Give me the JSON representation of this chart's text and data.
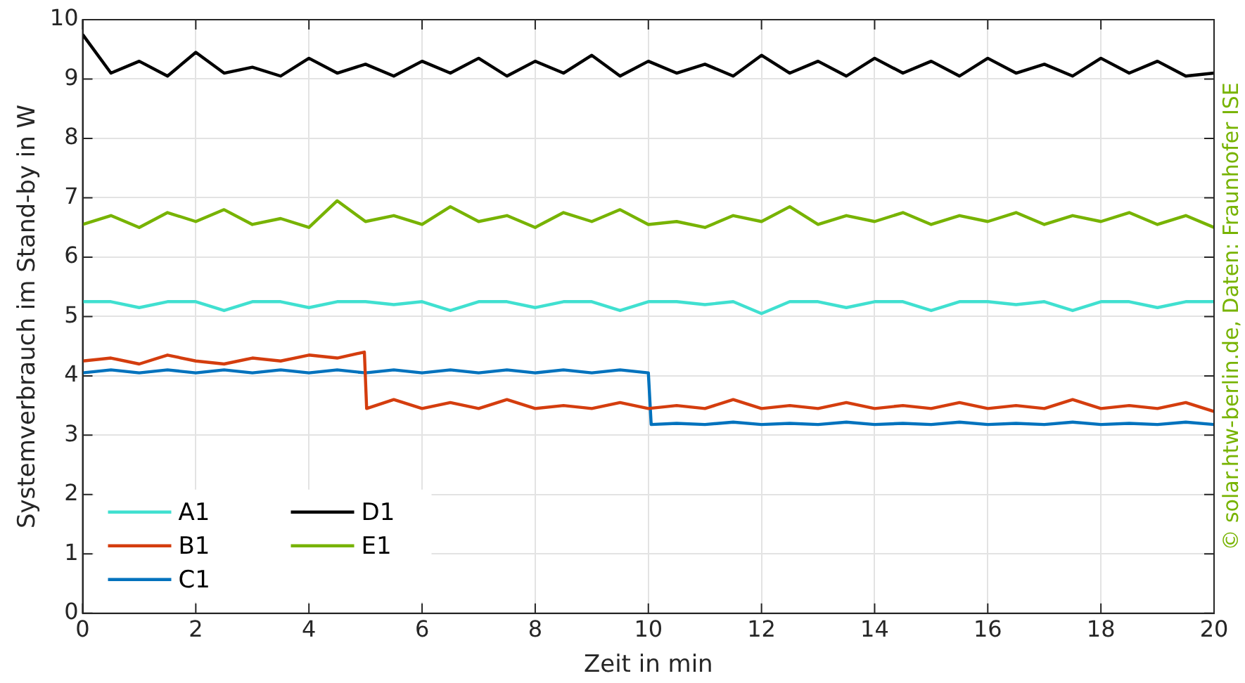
{
  "chart_data": {
    "type": "line",
    "xlabel": "Zeit in min",
    "ylabel": "Systemverbrauch im Stand-by in W",
    "xlim": [
      0,
      20
    ],
    "xticks": [
      0,
      2,
      4,
      6,
      8,
      10,
      12,
      14,
      16,
      18,
      20
    ],
    "ylim": [
      0,
      10
    ],
    "yticks": [
      0,
      1,
      2,
      3,
      4,
      5,
      6,
      7,
      8,
      9,
      10
    ],
    "grid": true,
    "legend": "bottom left",
    "marker": "none",
    "line_style": "solid",
    "annotations": [
      "© solar.htw-berlin.de, Daten: Fraunhofer ISE"
    ],
    "series": [
      {
        "name": "A1",
        "color": "#40e0d0",
        "x": [
          0,
          0.5,
          1,
          1.5,
          2,
          2.5,
          3,
          3.5,
          4,
          4.5,
          5,
          5.5,
          6,
          6.5,
          7,
          7.5,
          8,
          8.5,
          9,
          9.5,
          10,
          10.5,
          11,
          11.5,
          12,
          12.5,
          13,
          13.5,
          14,
          14.5,
          15,
          15.5,
          16,
          16.5,
          17,
          17.5,
          18,
          18.5,
          19,
          19.5,
          20
        ],
        "values": [
          5.25,
          5.25,
          5.15,
          5.25,
          5.25,
          5.1,
          5.25,
          5.25,
          5.15,
          5.25,
          5.25,
          5.2,
          5.25,
          5.1,
          5.25,
          5.25,
          5.15,
          5.25,
          5.25,
          5.1,
          5.25,
          5.25,
          5.2,
          5.25,
          5.05,
          5.25,
          5.25,
          5.15,
          5.25,
          5.25,
          5.1,
          5.25,
          5.25,
          5.2,
          5.25,
          5.1,
          5.25,
          5.25,
          5.15,
          5.25,
          5.25
        ]
      },
      {
        "name": "B1",
        "color": "#d43d0e",
        "x": [
          0,
          0.5,
          1,
          1.5,
          2,
          2.5,
          3,
          3.5,
          4,
          4.5,
          4.98,
          5.02,
          5.5,
          6,
          6.5,
          7,
          7.5,
          8,
          8.5,
          9,
          9.5,
          10,
          10.5,
          11,
          11.5,
          12,
          12.5,
          13,
          13.5,
          14,
          14.5,
          15,
          15.5,
          16,
          16.5,
          17,
          17.5,
          18,
          18.5,
          19,
          19.5,
          20
        ],
        "values": [
          4.25,
          4.3,
          4.2,
          4.35,
          4.25,
          4.2,
          4.3,
          4.25,
          4.35,
          4.3,
          4.4,
          3.45,
          3.6,
          3.45,
          3.55,
          3.45,
          3.6,
          3.45,
          3.5,
          3.45,
          3.55,
          3.45,
          3.5,
          3.45,
          3.6,
          3.45,
          3.5,
          3.45,
          3.55,
          3.45,
          3.5,
          3.45,
          3.55,
          3.45,
          3.5,
          3.45,
          3.6,
          3.45,
          3.5,
          3.45,
          3.55,
          3.4
        ]
      },
      {
        "name": "C1",
        "color": "#0072bd",
        "x": [
          0,
          0.5,
          1,
          1.5,
          2,
          2.5,
          3,
          3.5,
          4,
          4.5,
          5,
          5.5,
          6,
          6.5,
          7,
          7.5,
          8,
          8.5,
          9,
          9.5,
          10,
          10.05,
          10.5,
          11,
          11.5,
          12,
          12.5,
          13,
          13.5,
          14,
          14.5,
          15,
          15.5,
          16,
          16.5,
          17,
          17.5,
          18,
          18.5,
          19,
          19.5,
          20
        ],
        "values": [
          4.05,
          4.1,
          4.05,
          4.1,
          4.05,
          4.1,
          4.05,
          4.1,
          4.05,
          4.1,
          4.05,
          4.1,
          4.05,
          4.1,
          4.05,
          4.1,
          4.05,
          4.1,
          4.05,
          4.1,
          4.05,
          3.18,
          3.2,
          3.18,
          3.22,
          3.18,
          3.2,
          3.18,
          3.22,
          3.18,
          3.2,
          3.18,
          3.22,
          3.18,
          3.2,
          3.18,
          3.22,
          3.18,
          3.2,
          3.18,
          3.22,
          3.18
        ]
      },
      {
        "name": "D1",
        "color": "#000000",
        "x": [
          0,
          0.5,
          1,
          1.5,
          2,
          2.5,
          3,
          3.5,
          4,
          4.5,
          5,
          5.5,
          6,
          6.5,
          7,
          7.5,
          8,
          8.5,
          9,
          9.5,
          10,
          10.5,
          11,
          11.5,
          12,
          12.5,
          13,
          13.5,
          14,
          14.5,
          15,
          15.5,
          16,
          16.5,
          17,
          17.5,
          18,
          18.5,
          19,
          19.5,
          20
        ],
        "values": [
          9.75,
          9.1,
          9.3,
          9.05,
          9.45,
          9.1,
          9.2,
          9.05,
          9.35,
          9.1,
          9.25,
          9.05,
          9.3,
          9.1,
          9.35,
          9.05,
          9.3,
          9.1,
          9.4,
          9.05,
          9.3,
          9.1,
          9.25,
          9.05,
          9.4,
          9.1,
          9.3,
          9.05,
          9.35,
          9.1,
          9.3,
          9.05,
          9.35,
          9.1,
          9.25,
          9.05,
          9.35,
          9.1,
          9.3,
          9.05,
          9.1
        ]
      },
      {
        "name": "E1",
        "color": "#77b300",
        "x": [
          0,
          0.5,
          1,
          1.5,
          2,
          2.5,
          3,
          3.5,
          4,
          4.5,
          5,
          5.5,
          6,
          6.5,
          7,
          7.5,
          8,
          8.5,
          9,
          9.5,
          10,
          10.5,
          11,
          11.5,
          12,
          12.5,
          13,
          13.5,
          14,
          14.5,
          15,
          15.5,
          16,
          16.5,
          17,
          17.5,
          18,
          18.5,
          19,
          19.5,
          20
        ],
        "values": [
          6.55,
          6.7,
          6.5,
          6.75,
          6.6,
          6.8,
          6.55,
          6.65,
          6.5,
          6.95,
          6.6,
          6.7,
          6.55,
          6.85,
          6.6,
          6.7,
          6.5,
          6.75,
          6.6,
          6.8,
          6.55,
          6.6,
          6.5,
          6.7,
          6.6,
          6.85,
          6.55,
          6.7,
          6.6,
          6.75,
          6.55,
          6.7,
          6.6,
          6.75,
          6.55,
          6.7,
          6.6,
          6.75,
          6.55,
          6.7,
          6.5
        ]
      }
    ]
  }
}
